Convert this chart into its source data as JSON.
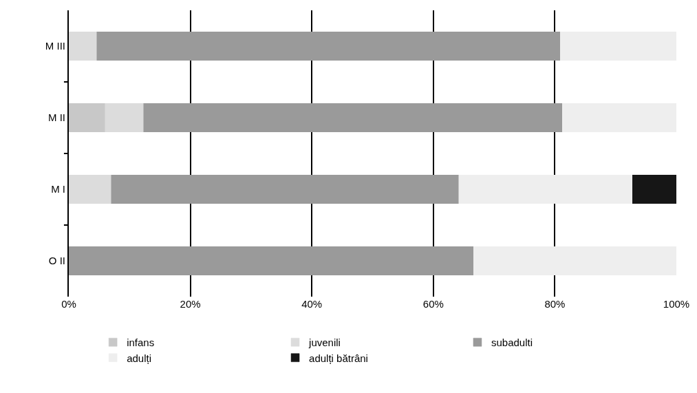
{
  "chart_data": {
    "type": "bar",
    "orientation": "horizontal",
    "stacked": true,
    "categories": [
      "M III",
      "M II",
      "M I",
      "O II"
    ],
    "series": [
      {
        "name": "infans",
        "color": "#c8c8c8",
        "values": [
          0,
          6.0,
          0,
          0
        ]
      },
      {
        "name": "juvenili",
        "color": "#dcdcdc",
        "values": [
          4.6,
          6.3,
          7.0,
          0
        ]
      },
      {
        "name": "subadulti",
        "color": "#9a9a9a",
        "values": [
          76.3,
          68.9,
          57.2,
          66.6
        ]
      },
      {
        "name": "adulți",
        "color": "#eeeeee",
        "values": [
          19.1,
          18.8,
          28.6,
          33.4
        ]
      },
      {
        "name": "adulți bătrâni",
        "color": "#161616",
        "values": [
          0,
          0,
          7.2,
          0
        ]
      }
    ],
    "xlim": [
      0,
      100
    ],
    "xticks": [
      {
        "value": 0,
        "label": "0%"
      },
      {
        "value": 20,
        "label": "20%"
      },
      {
        "value": 40,
        "label": "40%"
      },
      {
        "value": 60,
        "label": "60%"
      },
      {
        "value": 80,
        "label": "80%"
      },
      {
        "value": 100,
        "label": "100%"
      }
    ],
    "grid": "x",
    "legend": "bottom"
  }
}
